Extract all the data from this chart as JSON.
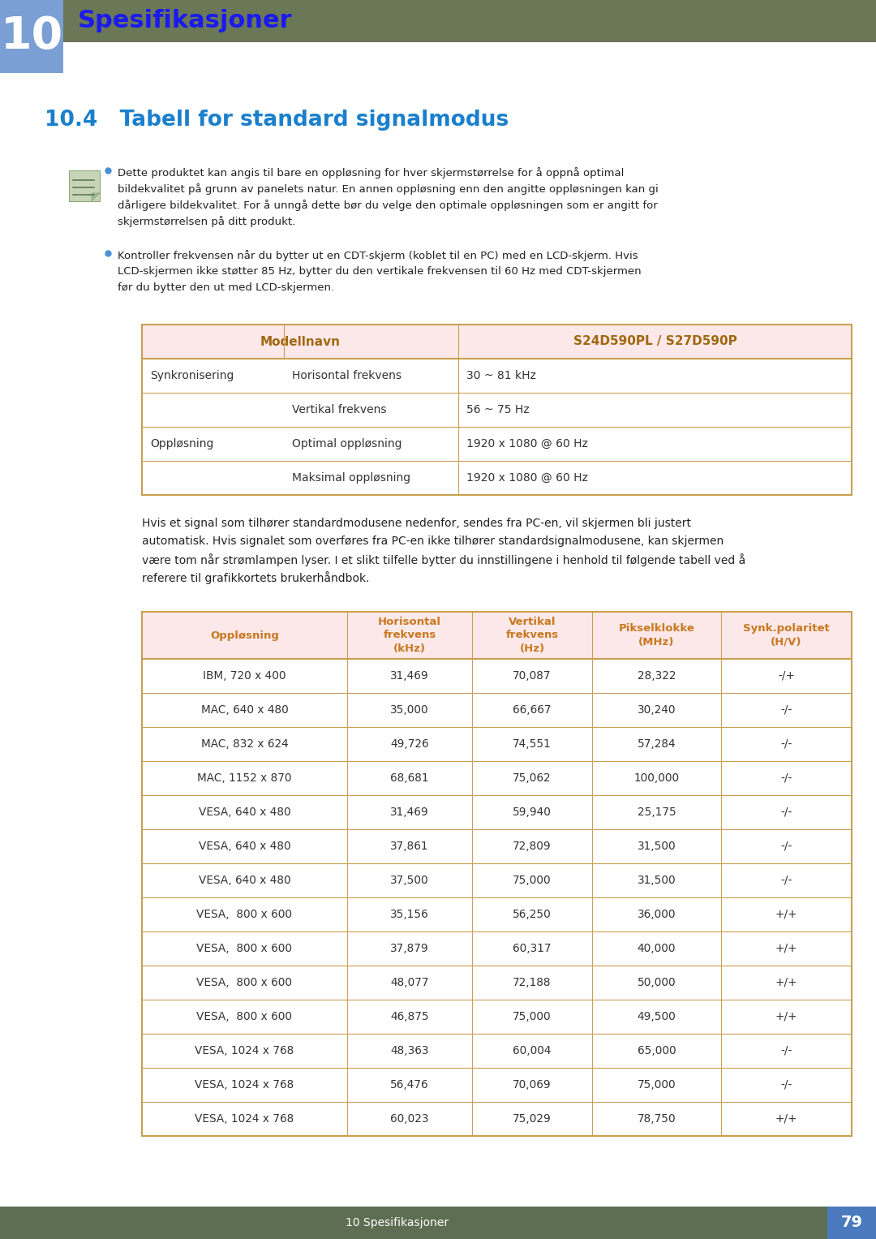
{
  "bg_color": "#ffffff",
  "header_bar_color": "#6b7857",
  "chapter_box_color": "#7b9fd4",
  "chapter_number": "10",
  "chapter_title": "Spesifikasjoner",
  "chapter_title_color": "#1a1aee",
  "section_title": "10.4   Tabell for standard signalmodus",
  "section_title_color": "#1a7fcc",
  "bullet_color": "#4a90d9",
  "bullet1_lines": [
    "Dette produktet kan angis til bare en oppløsning for hver skjermstørrelse for å oppnå optimal",
    "bildekvalitet på grunn av panelets natur. En annen oppløsning enn den angitte oppløsningen kan gi",
    "dårligere bildekvalitet. For å unngå dette bør du velge den optimale oppløsningen som er angitt for",
    "skjermstørrelsen på ditt produkt."
  ],
  "bullet2_lines": [
    "Kontroller frekvensen når du bytter ut en CDT-skjerm (koblet til en PC) med en LCD-skjerm. Hvis",
    "LCD-skjermen ikke støtter 85 Hz, bytter du den vertikale frekvensen til 60 Hz med CDT-skjermen",
    "før du bytter den ut med LCD-skjermen."
  ],
  "table1_header_bg": "#fce8e8",
  "table1_border_color": "#c8a050",
  "table1_header_text_color": "#a06810",
  "table1_header1": "Modellnavn",
  "table1_header2": "S24D590PL / S27D590P",
  "table1_rows": [
    [
      "Synkronisering",
      "Horisontal frekvens",
      "30 ~ 81 kHz"
    ],
    [
      "",
      "Vertikal frekvens",
      "56 ~ 75 Hz"
    ],
    [
      "Oppløsning",
      "Optimal oppløsning",
      "1920 x 1080 @ 60 Hz"
    ],
    [
      "",
      "Maksimal oppløsning",
      "1920 x 1080 @ 60 Hz"
    ]
  ],
  "mid_text_lines": [
    "Hvis et signal som tilhører standardmodusene nedenfor, sendes fra PC-en, vil skjermen bli justert",
    "automatisk. Hvis signalet som overføres fra PC-en ikke tilhører standardsignalmodusene, kan skjermen",
    "være tom når strømlampen lyser. I et slikt tilfelle bytter du innstillingene i henhold til følgende tabell ved å",
    "referere til grafikkortets brukerhåndbok."
  ],
  "table2_header_bg": "#fce8e8",
  "table2_border_color": "#c8a050",
  "table2_header_text_color": "#c87820",
  "table2_headers": [
    "Oppløsning",
    "Horisontal\nfrekvens\n(kHz)",
    "Vertikal\nfrekvens\n(Hz)",
    "Pikselklokke\n(MHz)",
    "Synk.polaritet\n(H/V)"
  ],
  "table2_rows": [
    [
      "IBM, 720 x 400",
      "31,469",
      "70,087",
      "28,322",
      "-/+"
    ],
    [
      "MAC, 640 x 480",
      "35,000",
      "66,667",
      "30,240",
      "-/-"
    ],
    [
      "MAC, 832 x 624",
      "49,726",
      "74,551",
      "57,284",
      "-/-"
    ],
    [
      "MAC, 1152 x 870",
      "68,681",
      "75,062",
      "100,000",
      "-/-"
    ],
    [
      "VESA, 640 x 480",
      "31,469",
      "59,940",
      "25,175",
      "-/-"
    ],
    [
      "VESA, 640 x 480",
      "37,861",
      "72,809",
      "31,500",
      "-/-"
    ],
    [
      "VESA, 640 x 480",
      "37,500",
      "75,000",
      "31,500",
      "-/-"
    ],
    [
      "VESA,  800 x 600",
      "35,156",
      "56,250",
      "36,000",
      "+/+"
    ],
    [
      "VESA,  800 x 600",
      "37,879",
      "60,317",
      "40,000",
      "+/+"
    ],
    [
      "VESA,  800 x 600",
      "48,077",
      "72,188",
      "50,000",
      "+/+"
    ],
    [
      "VESA,  800 x 600",
      "46,875",
      "75,000",
      "49,500",
      "+/+"
    ],
    [
      "VESA, 1024 x 768",
      "48,363",
      "60,004",
      "65,000",
      "-/-"
    ],
    [
      "VESA, 1024 x 768",
      "56,476",
      "70,069",
      "75,000",
      "-/-"
    ],
    [
      "VESA, 1024 x 768",
      "60,023",
      "75,029",
      "78,750",
      "+/+"
    ]
  ],
  "footer_bg": "#5e6e52",
  "footer_text": "10 Spesifikasjoner",
  "footer_page": "79",
  "footer_page_bg": "#4a7abd"
}
